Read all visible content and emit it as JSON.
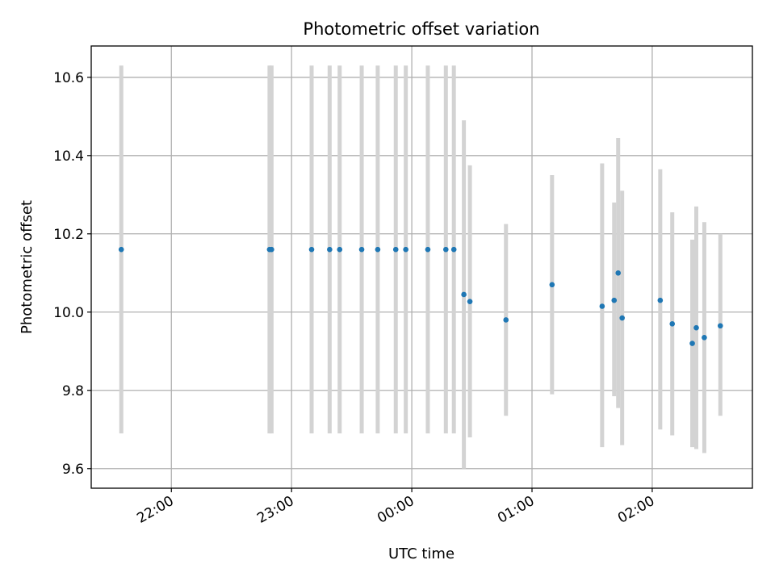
{
  "chart_data": {
    "type": "scatter",
    "title": "Photometric offset variation",
    "xlabel": "UTC time",
    "ylabel": "Photometric offset",
    "x_scale": "time",
    "x_range": [
      "21:20",
      "02:50"
    ],
    "ylim": [
      9.55,
      10.68
    ],
    "x_ticks": [
      "22:00",
      "23:00",
      "00:00",
      "01:00",
      "02:00"
    ],
    "y_ticks": [
      9.6,
      9.8,
      10.0,
      10.2,
      10.4,
      10.6
    ],
    "y_tick_labels": [
      "9.6",
      "9.8",
      "10.0",
      "10.2",
      "10.4",
      "10.6"
    ],
    "grid": true,
    "error_bars": true,
    "colors": {
      "marker": "#1f77b4",
      "error_bar": "#d3d3d3",
      "grid": "#b0b0b0"
    },
    "points": [
      {
        "x": "21:35",
        "y": 10.16,
        "ylow": 9.69,
        "yhigh": 10.63
      },
      {
        "x": "22:49",
        "y": 10.16,
        "ylow": 9.69,
        "yhigh": 10.63
      },
      {
        "x": "22:50",
        "y": 10.16,
        "ylow": 9.69,
        "yhigh": 10.63
      },
      {
        "x": "23:10",
        "y": 10.16,
        "ylow": 9.69,
        "yhigh": 10.63
      },
      {
        "x": "23:19",
        "y": 10.16,
        "ylow": 9.69,
        "yhigh": 10.63
      },
      {
        "x": "23:24",
        "y": 10.16,
        "ylow": 9.69,
        "yhigh": 10.63
      },
      {
        "x": "23:35",
        "y": 10.16,
        "ylow": 9.69,
        "yhigh": 10.63
      },
      {
        "x": "23:43",
        "y": 10.16,
        "ylow": 9.69,
        "yhigh": 10.63
      },
      {
        "x": "23:52",
        "y": 10.16,
        "ylow": 9.69,
        "yhigh": 10.63
      },
      {
        "x": "23:57",
        "y": 10.16,
        "ylow": 9.69,
        "yhigh": 10.63
      },
      {
        "x": "00:08",
        "y": 10.16,
        "ylow": 9.69,
        "yhigh": 10.63
      },
      {
        "x": "00:17",
        "y": 10.16,
        "ylow": 9.69,
        "yhigh": 10.63
      },
      {
        "x": "00:21",
        "y": 10.16,
        "ylow": 9.69,
        "yhigh": 10.63
      },
      {
        "x": "00:26",
        "y": 10.045,
        "ylow": 9.6,
        "yhigh": 10.49
      },
      {
        "x": "00:29",
        "y": 10.027,
        "ylow": 9.68,
        "yhigh": 10.375
      },
      {
        "x": "00:47",
        "y": 9.98,
        "ylow": 9.735,
        "yhigh": 10.225
      },
      {
        "x": "01:10",
        "y": 10.07,
        "ylow": 9.79,
        "yhigh": 10.35
      },
      {
        "x": "01:35",
        "y": 10.015,
        "ylow": 9.655,
        "yhigh": 10.38
      },
      {
        "x": "01:41",
        "y": 10.03,
        "ylow": 9.785,
        "yhigh": 10.28
      },
      {
        "x": "01:43",
        "y": 10.1,
        "ylow": 9.755,
        "yhigh": 10.445
      },
      {
        "x": "01:45",
        "y": 9.985,
        "ylow": 9.66,
        "yhigh": 10.31
      },
      {
        "x": "02:04",
        "y": 10.03,
        "ylow": 9.7,
        "yhigh": 10.365
      },
      {
        "x": "02:10",
        "y": 9.97,
        "ylow": 9.685,
        "yhigh": 10.255
      },
      {
        "x": "02:20",
        "y": 9.92,
        "ylow": 9.655,
        "yhigh": 10.185
      },
      {
        "x": "02:22",
        "y": 9.96,
        "ylow": 9.65,
        "yhigh": 10.27
      },
      {
        "x": "02:26",
        "y": 9.935,
        "ylow": 9.64,
        "yhigh": 10.23
      },
      {
        "x": "02:34",
        "y": 9.965,
        "ylow": 9.735,
        "yhigh": 10.2
      }
    ]
  }
}
